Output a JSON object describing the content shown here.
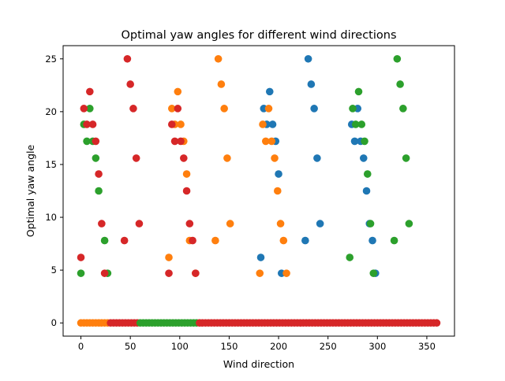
{
  "chart_data": {
    "type": "scatter",
    "title": "Optimal yaw angles for different wind directions",
    "xlabel": "Wind direction",
    "ylabel": "Optimal yaw angle",
    "xlim": [
      -18,
      378
    ],
    "ylim": [
      -1.25,
      26.25
    ],
    "xticks": [
      0,
      50,
      100,
      150,
      200,
      250,
      300,
      350
    ],
    "yticks": [
      0,
      5,
      10,
      15,
      20,
      25
    ],
    "grid": false,
    "legend": null,
    "colors": [
      "#1f77b4",
      "#ff7f0e",
      "#2ca02c",
      "#d62728"
    ],
    "baseline_y": 0,
    "baseline_x_range": [
      0,
      360
    ],
    "baseline_step": 3,
    "series": [
      {
        "color": "#1f77b4",
        "x": [
          182,
          185,
          188,
          191,
          194,
          197,
          200,
          203,
          227,
          230,
          233,
          236,
          239,
          242,
          274,
          277,
          280,
          283,
          286,
          289,
          292,
          295,
          298
        ],
        "y": [
          6.2,
          20.3,
          18.8,
          21.9,
          18.8,
          17.2,
          14.1,
          4.7,
          7.8,
          25.0,
          22.6,
          20.3,
          15.6,
          9.4,
          18.8,
          17.2,
          20.3,
          17.2,
          15.6,
          12.5,
          9.4,
          7.8,
          4.7
        ]
      },
      {
        "color": "#ff7f0e",
        "x": [
          89,
          92,
          95,
          98,
          101,
          104,
          107,
          110,
          116,
          136,
          139,
          142,
          145,
          148,
          151,
          181,
          184,
          187,
          190,
          193,
          196,
          199,
          202,
          205,
          208
        ],
        "y": [
          6.2,
          20.3,
          18.8,
          21.9,
          18.8,
          17.2,
          14.1,
          7.8,
          4.7,
          7.8,
          25.0,
          22.6,
          20.3,
          15.6,
          9.4,
          4.7,
          18.8,
          17.2,
          20.3,
          17.2,
          15.6,
          12.5,
          9.4,
          7.8,
          4.7
        ]
      },
      {
        "color": "#2ca02c",
        "x": [
          0,
          3,
          6,
          9,
          12,
          15,
          18,
          24,
          27,
          272,
          275,
          278,
          281,
          284,
          287,
          290,
          293,
          296,
          317,
          320,
          323,
          326,
          329,
          332
        ],
        "y": [
          4.7,
          18.8,
          17.2,
          20.3,
          17.2,
          15.6,
          12.5,
          7.8,
          4.7,
          6.2,
          20.3,
          18.8,
          21.9,
          18.8,
          17.2,
          14.1,
          9.4,
          4.7,
          7.8,
          25.0,
          22.6,
          20.3,
          15.6,
          9.4
        ],
        "note_positions": []
      },
      {
        "color": "#d62728",
        "x": [
          0,
          3,
          6,
          9,
          12,
          15,
          18,
          21,
          24,
          44,
          47,
          50,
          53,
          56,
          59,
          89,
          92,
          95,
          98,
          101,
          104,
          107,
          110,
          113,
          116
        ],
        "y": [
          6.2,
          20.3,
          18.8,
          21.9,
          18.8,
          17.2,
          14.1,
          9.4,
          4.7,
          7.8,
          25.0,
          22.6,
          20.3,
          15.6,
          9.4,
          4.7,
          18.8,
          17.2,
          20.3,
          17.2,
          15.6,
          12.5,
          9.4,
          7.8,
          4.7
        ]
      }
    ]
  }
}
